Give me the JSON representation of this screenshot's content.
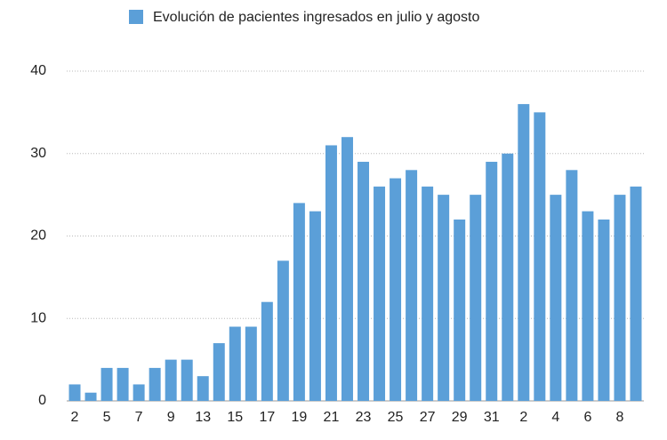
{
  "chart_data": {
    "type": "bar",
    "categories": [
      "2",
      null,
      "5",
      null,
      "7",
      null,
      "9",
      null,
      "13",
      null,
      "15",
      null,
      "17",
      null,
      "19",
      null,
      "21",
      null,
      "23",
      null,
      "25",
      null,
      "27",
      null,
      "29",
      null,
      "31",
      null,
      "2",
      null,
      "4",
      null,
      "6",
      null,
      "8",
      null
    ],
    "series": [
      {
        "name": "Evolución de pacientes ingresados en julio y agosto",
        "color": "#5b9fd8",
        "values": [
          2,
          1,
          4,
          4,
          2,
          4,
          5,
          5,
          3,
          7,
          9,
          9,
          12,
          17,
          24,
          23,
          31,
          32,
          29,
          26,
          27,
          28,
          26,
          25,
          22,
          25,
          29,
          30,
          36,
          35,
          25,
          28,
          23,
          22,
          25,
          26
        ]
      }
    ],
    "ylim": [
      0,
      40
    ],
    "yticks": [
      0,
      10,
      20,
      30,
      40
    ],
    "grid": true,
    "legend": "top"
  }
}
